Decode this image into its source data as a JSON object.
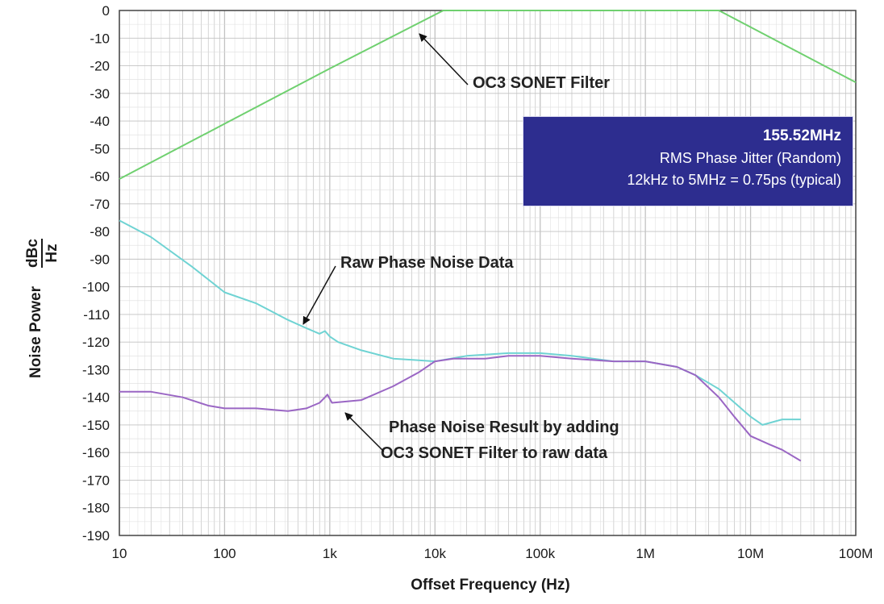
{
  "colors": {
    "filter_line": "#6fd06f",
    "raw_line": "#6fd3d3",
    "result_line": "#9a66c4",
    "info_box_bg": "#2d2d8f",
    "grid": "#c2c2c2"
  },
  "axis_labels": {
    "y_main": "Noise Power",
    "y_unit_num": "dBc",
    "y_unit_den": "Hz",
    "x": "Offset Frequency (Hz)"
  },
  "annotations": {
    "filter": "OC3 SONET Filter",
    "raw": "Raw Phase Noise Data",
    "result_line1": "Phase Noise Result by adding",
    "result_line2": "OC3 SONET Filter to raw data"
  },
  "info_box": {
    "line1": "155.52MHz",
    "line2": "RMS Phase Jitter  (Random)",
    "line3": "12kHz to 5MHz = 0.75ps (typical)"
  },
  "chart_data": {
    "type": "line",
    "x_scale": "log",
    "xlim": [
      10,
      100000000
    ],
    "ylim": [
      -190,
      0
    ],
    "x_ticks": [
      {
        "value": 10,
        "label": "10"
      },
      {
        "value": 100,
        "label": "100"
      },
      {
        "value": 1000,
        "label": "1k"
      },
      {
        "value": 10000,
        "label": "10k"
      },
      {
        "value": 100000,
        "label": "100k"
      },
      {
        "value": 1000000,
        "label": "1M"
      },
      {
        "value": 10000000,
        "label": "10M"
      },
      {
        "value": 100000000,
        "label": "100M"
      }
    ],
    "y_ticks": [
      0,
      -10,
      -20,
      -30,
      -40,
      -50,
      -60,
      -70,
      -80,
      -90,
      -100,
      -110,
      -120,
      -130,
      -140,
      -150,
      -160,
      -170,
      -180,
      -190
    ],
    "grid": true,
    "series": [
      {
        "color_key": "filter_line",
        "points": [
          [
            10,
            -61
          ],
          [
            100,
            -41
          ],
          [
            1000,
            -21
          ],
          [
            12000,
            0
          ],
          [
            5000000,
            0
          ],
          [
            100000000,
            -26
          ]
        ]
      },
      {
        "color_key": "raw_line",
        "points": [
          [
            10,
            -76
          ],
          [
            20,
            -82
          ],
          [
            50,
            -93
          ],
          [
            100,
            -102
          ],
          [
            200,
            -106
          ],
          [
            400,
            -112
          ],
          [
            600,
            -115
          ],
          [
            800,
            -117
          ],
          [
            900,
            -116
          ],
          [
            1000,
            -118
          ],
          [
            1200,
            -120
          ],
          [
            2000,
            -123
          ],
          [
            4000,
            -126
          ],
          [
            10000,
            -127
          ],
          [
            20000,
            -125
          ],
          [
            50000,
            -124
          ],
          [
            100000,
            -124
          ],
          [
            200000,
            -125
          ],
          [
            500000,
            -127
          ],
          [
            1000000,
            -127
          ],
          [
            2000000,
            -129
          ],
          [
            3000000,
            -132
          ],
          [
            5000000,
            -137
          ],
          [
            10000000,
            -147
          ],
          [
            13000000,
            -150
          ],
          [
            20000000,
            -148
          ],
          [
            30000000,
            -148
          ]
        ]
      },
      {
        "color_key": "result_line",
        "points": [
          [
            10,
            -138
          ],
          [
            20,
            -138
          ],
          [
            40,
            -140
          ],
          [
            70,
            -143
          ],
          [
            100,
            -144
          ],
          [
            200,
            -144
          ],
          [
            400,
            -145
          ],
          [
            600,
            -144
          ],
          [
            800,
            -142
          ],
          [
            900,
            -140
          ],
          [
            950,
            -139
          ],
          [
            1050,
            -142
          ],
          [
            2000,
            -141
          ],
          [
            4000,
            -136
          ],
          [
            7000,
            -131
          ],
          [
            10000,
            -127
          ],
          [
            15000,
            -126
          ],
          [
            30000,
            -126
          ],
          [
            50000,
            -125
          ],
          [
            100000,
            -125
          ],
          [
            200000,
            -126
          ],
          [
            500000,
            -127
          ],
          [
            1000000,
            -127
          ],
          [
            2000000,
            -129
          ],
          [
            3000000,
            -132
          ],
          [
            5000000,
            -140
          ],
          [
            7000000,
            -147
          ],
          [
            10000000,
            -154
          ],
          [
            15000000,
            -157
          ],
          [
            20000000,
            -159
          ],
          [
            30000000,
            -163
          ]
        ]
      }
    ]
  }
}
